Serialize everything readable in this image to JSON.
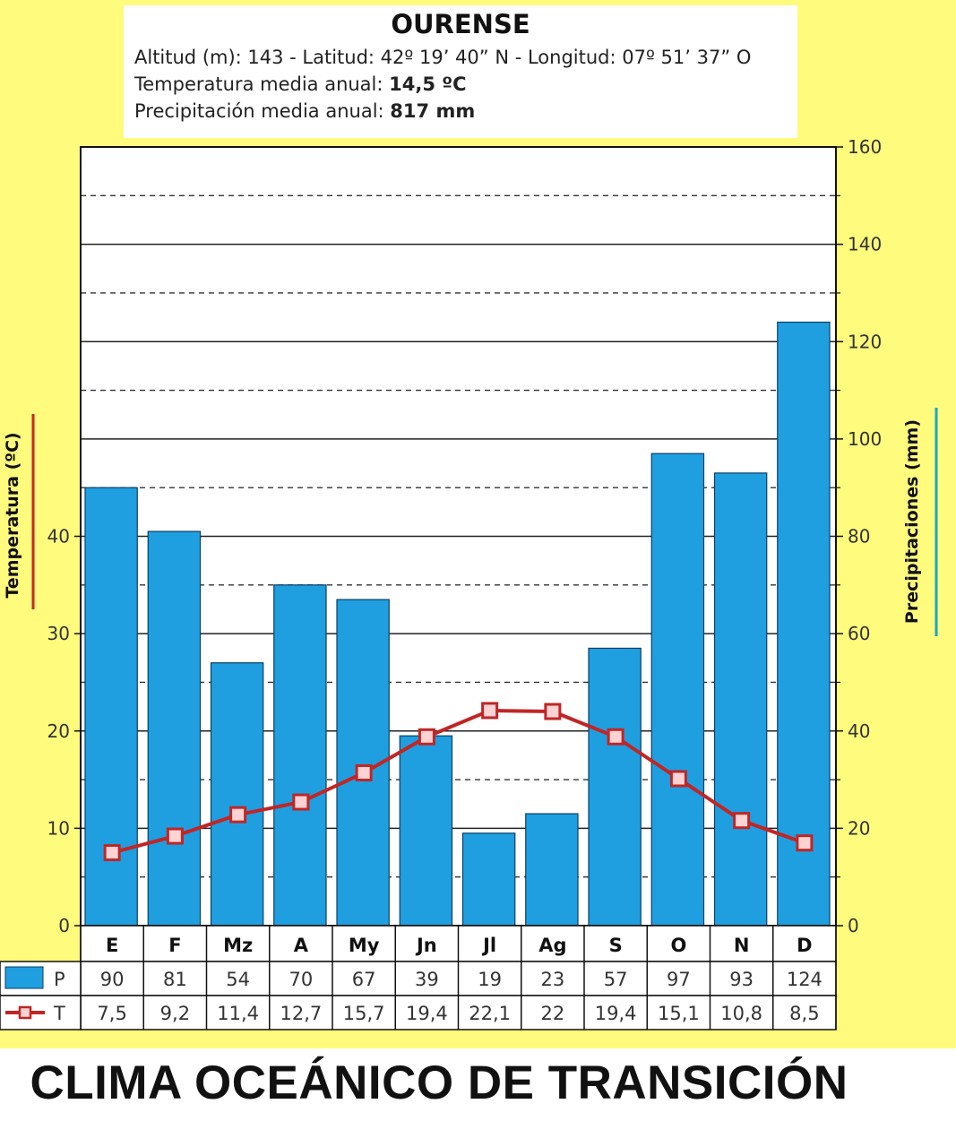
{
  "header": {
    "station": "OURENSE",
    "line1": "Altitud (m): 143 - Latitud: 42º 19’ 40” N - Longitud: 07º 51’ 37” O",
    "line2_label": "Temperatura media anual:",
    "line2_value": "14,5 ºC",
    "line3_label": "Precipitación media anual:",
    "line3_value": "817 mm"
  },
  "footer": {
    "title": "CLIMA OCEÁNICO DE TRANSICIÓN"
  },
  "colors": {
    "panel": "#fffb7d",
    "bar": "#1f9fe0",
    "bar_stroke": "#0b3f66",
    "temp": "#c02626",
    "temp_axis_line": "#c62828",
    "precip_axis_line": "#1aa6c8"
  },
  "chart_data": {
    "type": "bar+line",
    "title": "OURENSE",
    "categories": [
      "E",
      "F",
      "Mz",
      "A",
      "My",
      "Jn",
      "Jl",
      "Ag",
      "S",
      "O",
      "N",
      "D"
    ],
    "series": [
      {
        "name": "P",
        "axis": "right",
        "type": "bar",
        "values": [
          90,
          81,
          54,
          70,
          67,
          39,
          19,
          23,
          57,
          97,
          93,
          124
        ]
      },
      {
        "name": "T",
        "axis": "left",
        "type": "line",
        "values": [
          7.5,
          9.2,
          11.4,
          12.7,
          15.7,
          19.4,
          22.1,
          22,
          19.4,
          15.1,
          10.8,
          8.5
        ]
      }
    ],
    "table_values": {
      "P": [
        "90",
        "81",
        "54",
        "70",
        "67",
        "39",
        "19",
        "23",
        "57",
        "97",
        "93",
        "124"
      ],
      "T": [
        "7,5",
        "9,2",
        "11,4",
        "12,7",
        "15,7",
        "19,4",
        "22,1",
        "22",
        "19,4",
        "15,1",
        "10,8",
        "8,5"
      ]
    },
    "ylabel_left": "Temperatura (ºC)",
    "ylabel_right": "Precipitaciones (mm)",
    "ylim_left": [
      0,
      80
    ],
    "ylim_right": [
      0,
      160
    ],
    "left_ticks": [
      "0",
      "10",
      "20",
      "30",
      "40"
    ],
    "right_ticks": [
      "0",
      "20",
      "40",
      "60",
      "80",
      "100",
      "120",
      "140",
      "160"
    ],
    "grid": true
  }
}
